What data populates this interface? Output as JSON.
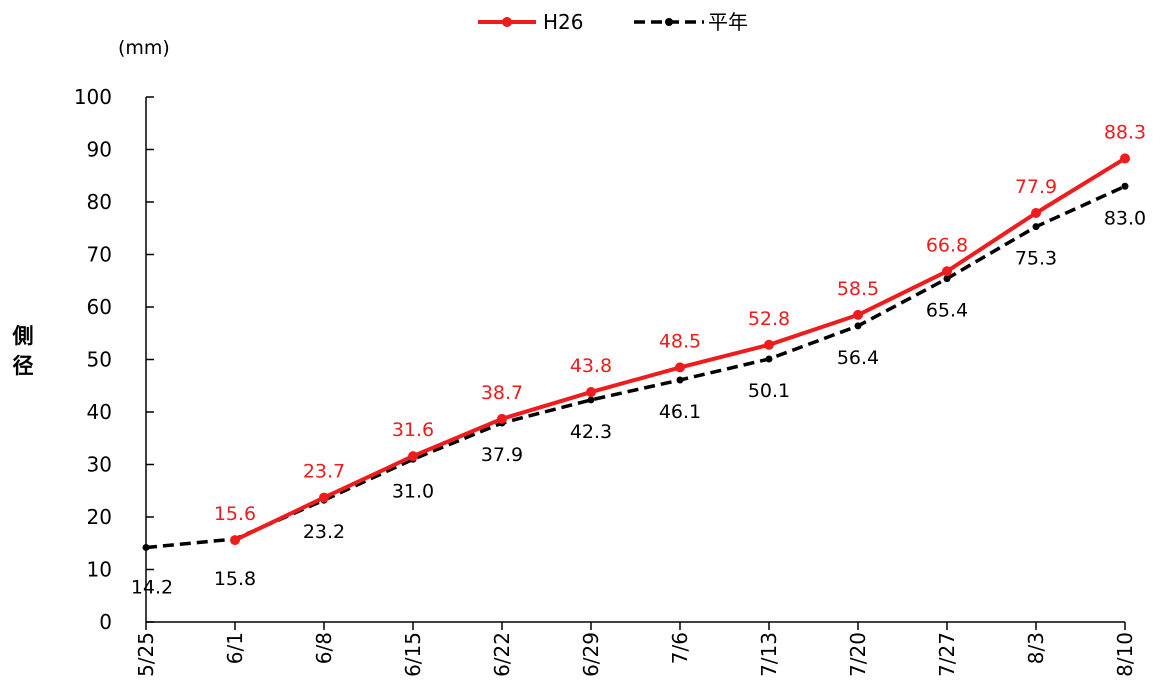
{
  "chart_data": {
    "type": "line",
    "unit_label": "(mm)",
    "ylabel": "側径",
    "ylim": [
      0,
      100
    ],
    "yticks": [
      0,
      10,
      20,
      30,
      40,
      50,
      60,
      70,
      80,
      90,
      100
    ],
    "categories": [
      "5/25",
      "6/1",
      "6/8",
      "6/15",
      "6/22",
      "6/29",
      "7/6",
      "7/13",
      "7/20",
      "7/27",
      "8/3",
      "8/10"
    ],
    "grid": false,
    "legend_position": "top-center",
    "series": [
      {
        "name": "H26",
        "color": "#ee1c1c",
        "style": "solid",
        "values": [
          null,
          15.6,
          23.7,
          31.6,
          38.7,
          43.8,
          48.5,
          52.8,
          58.5,
          66.8,
          77.9,
          88.3
        ],
        "labels": [
          "",
          "15.6",
          "23.7",
          "31.6",
          "38.7",
          "43.8",
          "48.5",
          "52.8",
          "58.5",
          "66.8",
          "77.9",
          "88.3"
        ]
      },
      {
        "name": "平年",
        "color": "#000000",
        "style": "dashed",
        "values": [
          14.2,
          15.8,
          23.2,
          31.0,
          37.9,
          42.3,
          46.1,
          50.1,
          56.4,
          65.4,
          75.3,
          83.0
        ],
        "labels": [
          "14.2",
          "15.8",
          "23.2",
          "31.0",
          "37.9",
          "42.3",
          "46.1",
          "50.1",
          "56.4",
          "65.4",
          "75.3",
          "83.0"
        ]
      }
    ]
  }
}
